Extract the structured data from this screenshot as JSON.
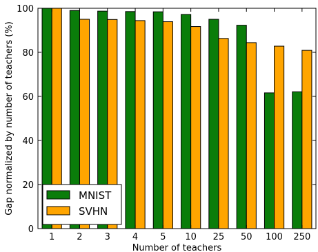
{
  "chart_data": {
    "type": "bar",
    "categories": [
      "1",
      "2",
      "3",
      "4",
      "5",
      "10",
      "25",
      "50",
      "100",
      "250"
    ],
    "series": [
      {
        "name": "MNIST",
        "color": "#0a7d0a",
        "values": [
          100.0,
          99.0,
          98.7,
          98.5,
          98.4,
          97.2,
          95.0,
          92.3,
          61.6,
          62.1
        ]
      },
      {
        "name": "SVHN",
        "color": "#ffa500",
        "values": [
          100.0,
          95.0,
          94.9,
          94.4,
          93.9,
          91.7,
          86.3,
          84.4,
          82.8,
          80.9
        ]
      }
    ],
    "xlabel": "Number of teachers",
    "ylabel": "Gap normalized by number of teachers (%)",
    "ylim": [
      0,
      100
    ],
    "yticks": [
      "0",
      "20",
      "40",
      "60",
      "80",
      "100"
    ],
    "grid": false,
    "legend_position": "lower-left"
  }
}
